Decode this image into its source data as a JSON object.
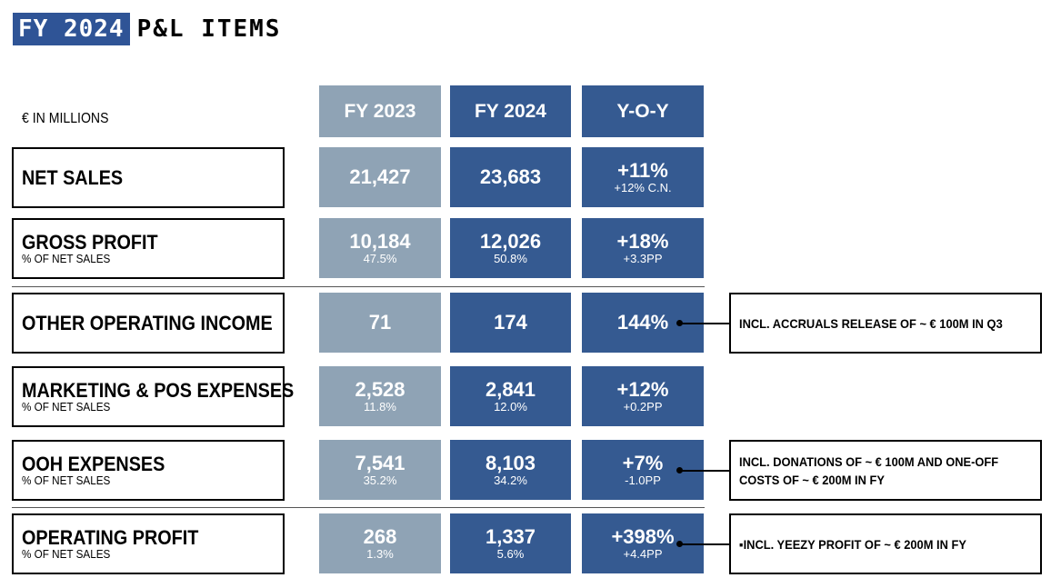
{
  "title": {
    "highlight": "FY 2024",
    "rest": "P&L ITEMS"
  },
  "unit_label": "€ IN MILLIONS",
  "columns": [
    "FY 2023",
    "FY 2024",
    "Y-O-Y"
  ],
  "rows": [
    {
      "label": "NET SALES",
      "sublabel": "",
      "fy2023": "21,427",
      "fy2023_sub": "",
      "fy2024": "23,683",
      "fy2024_sub": "",
      "yoy": "+11%",
      "yoy_sub": "+12% C.N."
    },
    {
      "label": "GROSS PROFIT",
      "sublabel": "% OF NET SALES",
      "fy2023": "10,184",
      "fy2023_sub": "47.5%",
      "fy2024": "12,026",
      "fy2024_sub": "50.8%",
      "yoy": "+18%",
      "yoy_sub": "+3.3PP"
    },
    {
      "label": "OTHER OPERATING INCOME",
      "sublabel": "",
      "fy2023": "71",
      "fy2023_sub": "",
      "fy2024": "174",
      "fy2024_sub": "",
      "yoy": "144%",
      "yoy_sub": ""
    },
    {
      "label": "MARKETING & POS EXPENSES",
      "sublabel": "% OF NET SALES",
      "fy2023": "2,528",
      "fy2023_sub": "11.8%",
      "fy2024": "2,841",
      "fy2024_sub": "12.0%",
      "yoy": "+12%",
      "yoy_sub": "+0.2PP"
    },
    {
      "label": "OOH EXPENSES",
      "sublabel": "% OF NET SALES",
      "fy2023": "7,541",
      "fy2023_sub": "35.2%",
      "fy2024": "8,103",
      "fy2024_sub": "34.2%",
      "yoy": "+7%",
      "yoy_sub": "-1.0PP"
    },
    {
      "label": "OPERATING PROFIT",
      "sublabel": "% OF NET SALES",
      "fy2023": "268",
      "fy2023_sub": "1.3%",
      "fy2024": "1,337",
      "fy2024_sub": "5.6%",
      "yoy": "+398%",
      "yoy_sub": "+4.4PP"
    }
  ],
  "notes": {
    "other_operating_income": "INCL. ACCRUALS RELEASE OF ~ € 100M IN Q3",
    "ooh_line1": "INCL. DONATIONS OF ~ € 100M AND ONE-OFF",
    "ooh_line2": "COSTS OF ~ € 200M IN FY",
    "operating_profit": "▪INCL. YEEZY PROFIT OF ~ € 200M IN FY"
  },
  "colors": {
    "fy2023": "#8fa3b5",
    "fy2024": "#355a91",
    "yoy": "#355a91",
    "title_bg": "#2f5496"
  }
}
